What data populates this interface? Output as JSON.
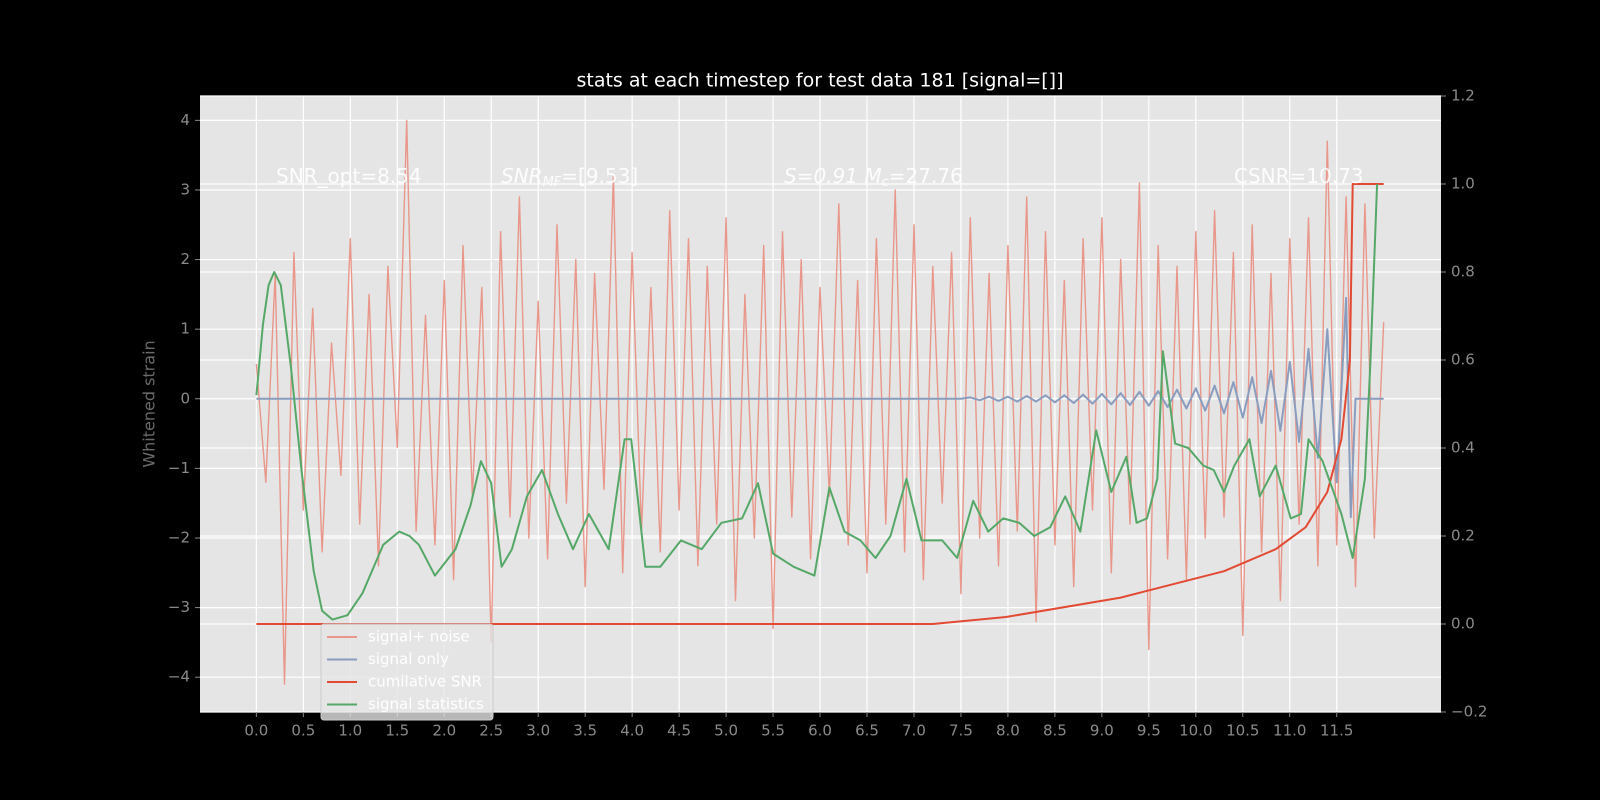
{
  "chart_data": {
    "type": "line",
    "title": "stats at each timestep for test data 181 [signal=[]]",
    "ylabel": "Whitened strain",
    "xlim": [
      -0.6,
      12.61
    ],
    "ylim": [
      -4.5,
      4.35
    ],
    "y2lim": [
      -0.2,
      1.2
    ],
    "xticks": [
      {
        "value": 0,
        "label": "0.0"
      },
      0.5,
      {
        "value": 1,
        "label": "1.0"
      },
      1.5,
      {
        "value": 2,
        "label": "2.0"
      },
      2.5,
      {
        "value": 3,
        "label": "3.0"
      },
      3.5,
      {
        "value": 4,
        "label": "4.0"
      },
      4.5,
      {
        "value": 5,
        "label": "5.0"
      },
      5.5,
      {
        "value": 6,
        "label": "6.0"
      },
      6.5,
      {
        "value": 7,
        "label": "7.0"
      },
      7.5,
      {
        "value": 8,
        "label": "8.0"
      },
      8.5,
      {
        "value": 9,
        "label": "9.0"
      },
      9.5,
      {
        "value": 10,
        "label": "10.0"
      },
      10.5,
      {
        "value": 11,
        "label": "11.0"
      },
      11.5
    ],
    "yticks": [
      {
        "value": -4,
        "label": "−4"
      },
      {
        "value": -3,
        "label": "−3"
      },
      {
        "value": -2,
        "label": "−2"
      },
      {
        "value": -1,
        "label": "−1"
      },
      0,
      1,
      2,
      3,
      4
    ],
    "y2ticks": [
      {
        "value": -0.2,
        "label": "−0.2"
      },
      {
        "value": 0,
        "label": "0.0"
      },
      0.2,
      0.4,
      0.6,
      0.8,
      {
        "value": 1,
        "label": "1.0"
      },
      1.2
    ],
    "grid": true,
    "legend": "lower left",
    "annotations": [
      [
        "SNR_opt=8.54"
      ],
      [
        "SNR",
        "MF",
        "=[9.53]"
      ],
      [
        "S=0.91   M",
        "c",
        "=27.76"
      ],
      [
        "CSNR=10.73"
      ]
    ],
    "series": [
      {
        "name": "signal+ noise",
        "color": "#e8978a",
        "x": [
          0,
          0.1,
          0.2,
          0.3,
          0.4,
          0.5,
          0.6,
          0.7,
          0.8,
          0.9,
          1,
          1.1,
          1.2,
          1.3,
          1.4,
          1.5,
          1.6,
          1.7,
          1.8,
          1.9,
          2,
          2.1,
          2.2,
          2.3,
          2.4,
          2.5,
          2.6,
          2.7,
          2.8,
          2.9,
          3,
          3.1,
          3.2,
          3.3,
          3.4,
          3.5,
          3.6,
          3.7,
          3.8,
          3.9,
          4,
          4.1,
          4.2,
          4.3,
          4.4,
          4.5,
          4.6,
          4.7,
          4.8,
          4.9,
          5,
          5.1,
          5.2,
          5.3,
          5.4,
          5.5,
          5.6,
          5.7,
          5.8,
          5.9,
          6,
          6.1,
          6.2,
          6.3,
          6.4,
          6.5,
          6.6,
          6.7,
          6.8,
          6.9,
          7,
          7.1,
          7.2,
          7.3,
          7.4,
          7.5,
          7.6,
          7.7,
          7.8,
          7.9,
          8,
          8.1,
          8.2,
          8.3,
          8.4,
          8.5,
          8.6,
          8.7,
          8.8,
          8.9,
          9,
          9.1,
          9.2,
          9.3,
          9.4,
          9.5,
          9.6,
          9.7,
          9.8,
          9.9,
          10,
          10.1,
          10.2,
          10.3,
          10.4,
          10.5,
          10.6,
          10.7,
          10.8,
          10.9,
          11,
          11.1,
          11.2,
          11.3,
          11.4,
          11.5,
          11.6,
          11.7,
          11.8,
          11.9,
          12
        ],
        "values": [
          0.5,
          -1.2,
          1.8,
          -4.1,
          2.1,
          -1.6,
          1.3,
          -2.2,
          0.8,
          -1.1,
          2.3,
          -1.8,
          1.5,
          -2.4,
          1.9,
          -0.7,
          4.0,
          -1.9,
          1.2,
          -2.1,
          1.7,
          -2.6,
          2.2,
          -1.4,
          1.6,
          -3.5,
          2.4,
          -1.7,
          2.9,
          -2.0,
          1.4,
          -2.3,
          2.5,
          -1.5,
          2.0,
          -2.7,
          1.8,
          -1.3,
          3.2,
          -2.5,
          2.1,
          -1.9,
          1.6,
          -2.2,
          2.7,
          -1.6,
          2.3,
          -2.4,
          1.9,
          -1.8,
          2.6,
          -2.9,
          1.5,
          -2.0,
          2.2,
          -3.3,
          2.4,
          -1.7,
          2.0,
          -2.3,
          1.6,
          -1.4,
          2.8,
          -2.1,
          1.7,
          -2.5,
          2.3,
          -1.8,
          3.0,
          -2.2,
          2.5,
          -2.6,
          1.9,
          -1.5,
          2.1,
          -2.8,
          2.6,
          -2.0,
          1.8,
          -2.4,
          2.2,
          -1.9,
          2.9,
          -3.2,
          2.4,
          -2.1,
          1.7,
          -2.7,
          2.3,
          -1.6,
          2.6,
          -2.5,
          2.0,
          -1.8,
          3.1,
          -3.6,
          2.2,
          -2.3,
          1.9,
          -2.6,
          2.4,
          -2.0,
          2.7,
          -1.7,
          2.1,
          -3.4,
          2.5,
          -2.2,
          1.8,
          -2.9,
          2.3,
          -1.8,
          2.6,
          -2.4,
          3.7,
          -2.1,
          2.9,
          -2.7,
          2.8,
          -2.0,
          1.1
        ]
      },
      {
        "name": "signal only",
        "color": "#8a9dbf",
        "x": [
          0,
          7.5,
          7.6,
          7.7,
          7.8,
          7.9,
          8,
          8.1,
          8.2,
          8.3,
          8.4,
          8.5,
          8.6,
          8.7,
          8.8,
          8.9,
          9,
          9.1,
          9.2,
          9.3,
          9.4,
          9.5,
          9.6,
          9.7,
          9.8,
          9.9,
          10,
          10.1,
          10.2,
          10.3,
          10.4,
          10.5,
          10.6,
          10.7,
          10.8,
          10.9,
          11,
          11.1,
          11.2,
          11.3,
          11.4,
          11.5,
          11.6,
          11.65,
          11.7,
          12
        ],
        "values": [
          0,
          0,
          0.02,
          -0.02,
          0.03,
          -0.03,
          0.03,
          -0.04,
          0.04,
          -0.04,
          0.05,
          -0.05,
          0.05,
          -0.06,
          0.06,
          -0.07,
          0.07,
          -0.08,
          0.08,
          -0.09,
          0.1,
          -0.1,
          0.11,
          -0.12,
          0.13,
          -0.14,
          0.15,
          -0.17,
          0.19,
          -0.21,
          0.24,
          -0.27,
          0.31,
          -0.35,
          0.4,
          -0.46,
          0.53,
          -0.62,
          0.72,
          -0.85,
          1.0,
          -1.2,
          1.45,
          -1.7,
          0,
          0
        ]
      },
      {
        "name": "cumilative SNR",
        "color": "#e24a33",
        "axis": "y2",
        "x": [
          0,
          7.2,
          7.98,
          9.2,
          10.3,
          10.85,
          11.17,
          11.4,
          11.55,
          11.64,
          11.67,
          12
        ],
        "values": [
          0,
          0,
          0.016,
          0.06,
          0.12,
          0.17,
          0.22,
          0.3,
          0.42,
          0.6,
          1.0,
          1.0
        ]
      },
      {
        "name": "signal statistics",
        "color": "#55a868",
        "axis": "y2",
        "x": [
          0,
          0.07,
          0.13,
          0.19,
          0.26,
          0.37,
          0.48,
          0.61,
          0.7,
          0.81,
          0.97,
          1.13,
          1.35,
          1.52,
          1.63,
          1.73,
          1.9,
          2.12,
          2.28,
          2.39,
          2.5,
          2.61,
          2.72,
          2.88,
          3.04,
          3.21,
          3.37,
          3.54,
          3.75,
          3.92,
          3.99,
          4.14,
          4.3,
          4.52,
          4.74,
          4.95,
          5.17,
          5.34,
          5.5,
          5.72,
          5.94,
          6.1,
          6.26,
          6.43,
          6.59,
          6.75,
          6.92,
          7.08,
          7.3,
          7.46,
          7.63,
          7.79,
          7.95,
          8.12,
          8.28,
          8.45,
          8.61,
          8.77,
          8.94,
          9.1,
          9.26,
          9.37,
          9.48,
          9.59,
          9.65,
          9.78,
          9.92,
          10.08,
          10.19,
          10.3,
          10.41,
          10.57,
          10.68,
          10.85,
          11.01,
          11.12,
          11.2,
          11.35,
          11.55,
          11.67,
          11.8,
          11.86,
          11.93
        ],
        "values": [
          0.52,
          0.68,
          0.77,
          0.8,
          0.77,
          0.58,
          0.35,
          0.12,
          0.03,
          0.01,
          0.02,
          0.07,
          0.18,
          0.21,
          0.2,
          0.18,
          0.11,
          0.17,
          0.27,
          0.37,
          0.32,
          0.13,
          0.17,
          0.29,
          0.35,
          0.25,
          0.17,
          0.25,
          0.17,
          0.42,
          0.42,
          0.13,
          0.13,
          0.19,
          0.17,
          0.23,
          0.24,
          0.32,
          0.16,
          0.13,
          0.11,
          0.31,
          0.21,
          0.19,
          0.15,
          0.2,
          0.33,
          0.19,
          0.19,
          0.15,
          0.28,
          0.21,
          0.24,
          0.23,
          0.2,
          0.22,
          0.29,
          0.21,
          0.44,
          0.3,
          0.38,
          0.23,
          0.24,
          0.33,
          0.62,
          0.41,
          0.4,
          0.36,
          0.35,
          0.3,
          0.36,
          0.42,
          0.29,
          0.36,
          0.24,
          0.25,
          0.42,
          0.37,
          0.25,
          0.15,
          0.33,
          0.6,
          1.0
        ]
      }
    ]
  }
}
